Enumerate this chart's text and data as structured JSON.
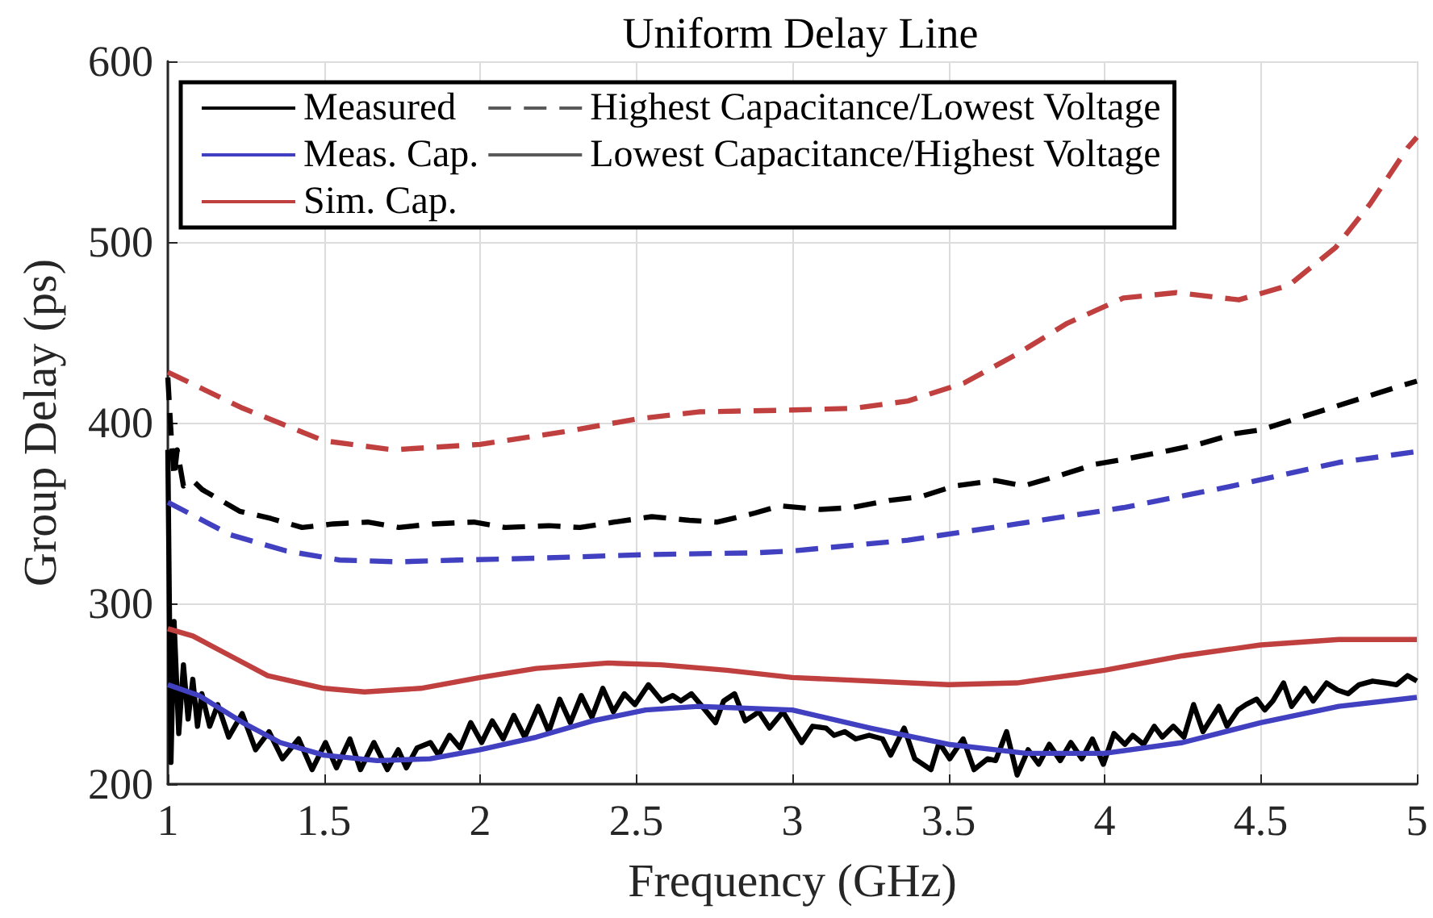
{
  "chart_data": {
    "type": "line",
    "title": "Uniform Delay Line",
    "xlabel": "Frequency (GHz)",
    "ylabel": "Group Delay (ps)",
    "xlim": [
      1,
      5
    ],
    "xticks": [
      1,
      1.5,
      2,
      2.5,
      3,
      3.5,
      4,
      4.5,
      5
    ],
    "ylim": [
      200,
      600
    ],
    "yticks": [
      200,
      300,
      400,
      500,
      600
    ],
    "grid": true,
    "legend": "top left",
    "marker": "none",
    "series": [
      {
        "name": "Measured",
        "color": "#000000",
        "line_style": "solid",
        "x": [
          1,
          1.01,
          1.02,
          1.035,
          1.05,
          1.065,
          1.08,
          1.095,
          1.109,
          1.134,
          1.16,
          1.195,
          1.238,
          1.281,
          1.324,
          1.367,
          1.419,
          1.462,
          1.505,
          1.54,
          1.583,
          1.617,
          1.66,
          1.703,
          1.738,
          1.764,
          1.798,
          1.841,
          1.867,
          1.902,
          1.936,
          1.97,
          2.005,
          2.039,
          2.074,
          2.108,
          2.143,
          2.186,
          2.22,
          2.255,
          2.289,
          2.324,
          2.358,
          2.393,
          2.427,
          2.462,
          2.496,
          2.539,
          2.582,
          2.617,
          2.643,
          2.677,
          2.711,
          2.754,
          2.78,
          2.815,
          2.849,
          2.893,
          2.927,
          2.97,
          3.03,
          3.065,
          3.108,
          3.134,
          3.168,
          3.203,
          3.246,
          3.289,
          3.315,
          3.358,
          3.392,
          3.444,
          3.47,
          3.504,
          3.547,
          3.582,
          3.625,
          3.651,
          3.686,
          3.72,
          3.755,
          3.789,
          3.823,
          3.858,
          3.892,
          3.927,
          3.961,
          3.996,
          4.03,
          4.065,
          4.09,
          4.125,
          4.159,
          4.185,
          4.22,
          4.254,
          4.285,
          4.315,
          4.366,
          4.392,
          4.427,
          4.453,
          4.487,
          4.513,
          4.539,
          4.573,
          4.599,
          4.642,
          4.668,
          4.711,
          4.746,
          4.78,
          4.815,
          4.858,
          4.901,
          4.935,
          4.97,
          5
        ],
        "values": [
          385,
          212,
          290,
          228,
          266,
          236,
          258,
          232,
          250,
          232,
          244,
          226,
          239,
          219,
          229,
          214,
          225,
          208,
          223,
          209,
          225,
          208,
          223,
          208,
          219,
          209,
          220,
          223,
          216,
          227,
          220,
          234,
          223,
          235,
          225,
          238,
          226,
          243,
          229,
          247,
          234,
          249,
          237,
          253,
          240,
          250,
          244,
          255,
          246,
          249,
          246,
          250,
          243,
          234,
          246,
          250,
          235,
          240,
          231,
          240,
          223,
          232,
          231,
          227,
          229,
          225,
          227,
          225,
          216,
          231,
          214,
          208,
          223,
          214,
          225,
          208,
          214,
          213,
          229,
          205,
          219,
          211,
          222,
          213,
          223,
          214,
          225,
          211,
          228,
          222,
          227,
          222,
          232,
          226,
          232,
          226,
          244,
          229,
          243,
          232,
          241,
          244,
          247,
          241,
          246,
          256,
          243,
          253,
          246,
          256,
          252,
          250,
          255,
          257,
          256,
          255,
          260,
          257
        ]
      },
      {
        "name": "Meas. Cap.",
        "color": "#4040c0",
        "line_style": "solid",
        "x": [
          1,
          1.1,
          1.24,
          1.36,
          1.5,
          1.67,
          1.84,
          2,
          2.18,
          2.36,
          2.53,
          2.7,
          3,
          3.25,
          3.5,
          3.75,
          4,
          4.25,
          4.5,
          4.75,
          5
        ],
        "values": [
          255,
          249,
          234,
          223,
          216,
          213,
          214,
          219,
          226,
          235,
          241,
          243,
          241,
          231,
          222,
          217,
          217,
          223,
          234,
          243,
          248
        ]
      },
      {
        "name": "Sim. Cap.",
        "color": "#c04040",
        "line_style": "solid",
        "x": [
          1,
          1.08,
          1.2,
          1.32,
          1.5,
          1.63,
          1.81,
          2,
          2.18,
          2.41,
          2.58,
          2.79,
          3,
          3.5,
          3.72,
          4,
          4.25,
          4.5,
          4.75,
          5
        ],
        "values": [
          286,
          282,
          271,
          260,
          253,
          251,
          253,
          259,
          264,
          267,
          266,
          263,
          259,
          255,
          256,
          263,
          271,
          277,
          280,
          280
        ]
      },
      {
        "color": "#000000",
        "line_style": "dashed",
        "x": [
          1,
          1.01,
          1.02,
          1.03,
          1.05,
          1.08,
          1.11,
          1.23,
          1.33,
          1.43,
          1.53,
          1.64,
          1.74,
          1.85,
          1.98,
          2.08,
          2.22,
          2.32,
          2.43,
          2.55,
          2.67,
          2.76,
          2.88,
          2.96,
          3.09,
          3.19,
          3.31,
          3.41,
          3.52,
          3.65,
          3.74,
          3.86,
          3.97,
          4.07,
          4.19,
          4.3,
          4.42,
          4.5,
          4.61,
          4.74,
          4.85,
          4.96,
          5
        ],
        "values": [
          425,
          395,
          370,
          385,
          365,
          368,
          363,
          351,
          347,
          342,
          344,
          345,
          342,
          344,
          345,
          342,
          343,
          342,
          345,
          348,
          346,
          345,
          350,
          354,
          352,
          353,
          357,
          359,
          365,
          368,
          365,
          371,
          377,
          380,
          384,
          388,
          394,
          396,
          402,
          409,
          415,
          421,
          423
        ]
      },
      {
        "color": "#4040c0",
        "line_style": "dashed",
        "x": [
          1,
          1.2,
          1.38,
          1.55,
          1.74,
          1.93,
          2.18,
          2.53,
          2.88,
          3,
          3.37,
          3.72,
          4.06,
          4.41,
          4.75,
          5
        ],
        "values": [
          356,
          338,
          329,
          324,
          323,
          324,
          325,
          327,
          328,
          329,
          335,
          344,
          353,
          365,
          378,
          384
        ]
      },
      {
        "color": "#c04040",
        "line_style": "dashed",
        "x": [
          1,
          1.24,
          1.5,
          1.72,
          2,
          2.27,
          2.5,
          2.7,
          3,
          3.2,
          3.37,
          3.55,
          3.72,
          3.88,
          4.06,
          4.23,
          4.43,
          4.59,
          4.74,
          4.85,
          4.97,
          5
        ],
        "values": [
          428,
          408,
          390,
          385,
          388,
          395,
          402,
          406,
          407,
          408,
          412,
          422,
          438,
          455,
          469,
          472,
          468,
          476,
          497,
          521,
          552,
          558
        ]
      },
      {
        "name": "Highest Capacitance/Lowest Voltage",
        "color": "#595959",
        "line_style": "dashed"
      },
      {
        "name": "Lowest Capacitance/Highest Voltage",
        "color": "#595959",
        "line_style": "solid"
      }
    ]
  }
}
